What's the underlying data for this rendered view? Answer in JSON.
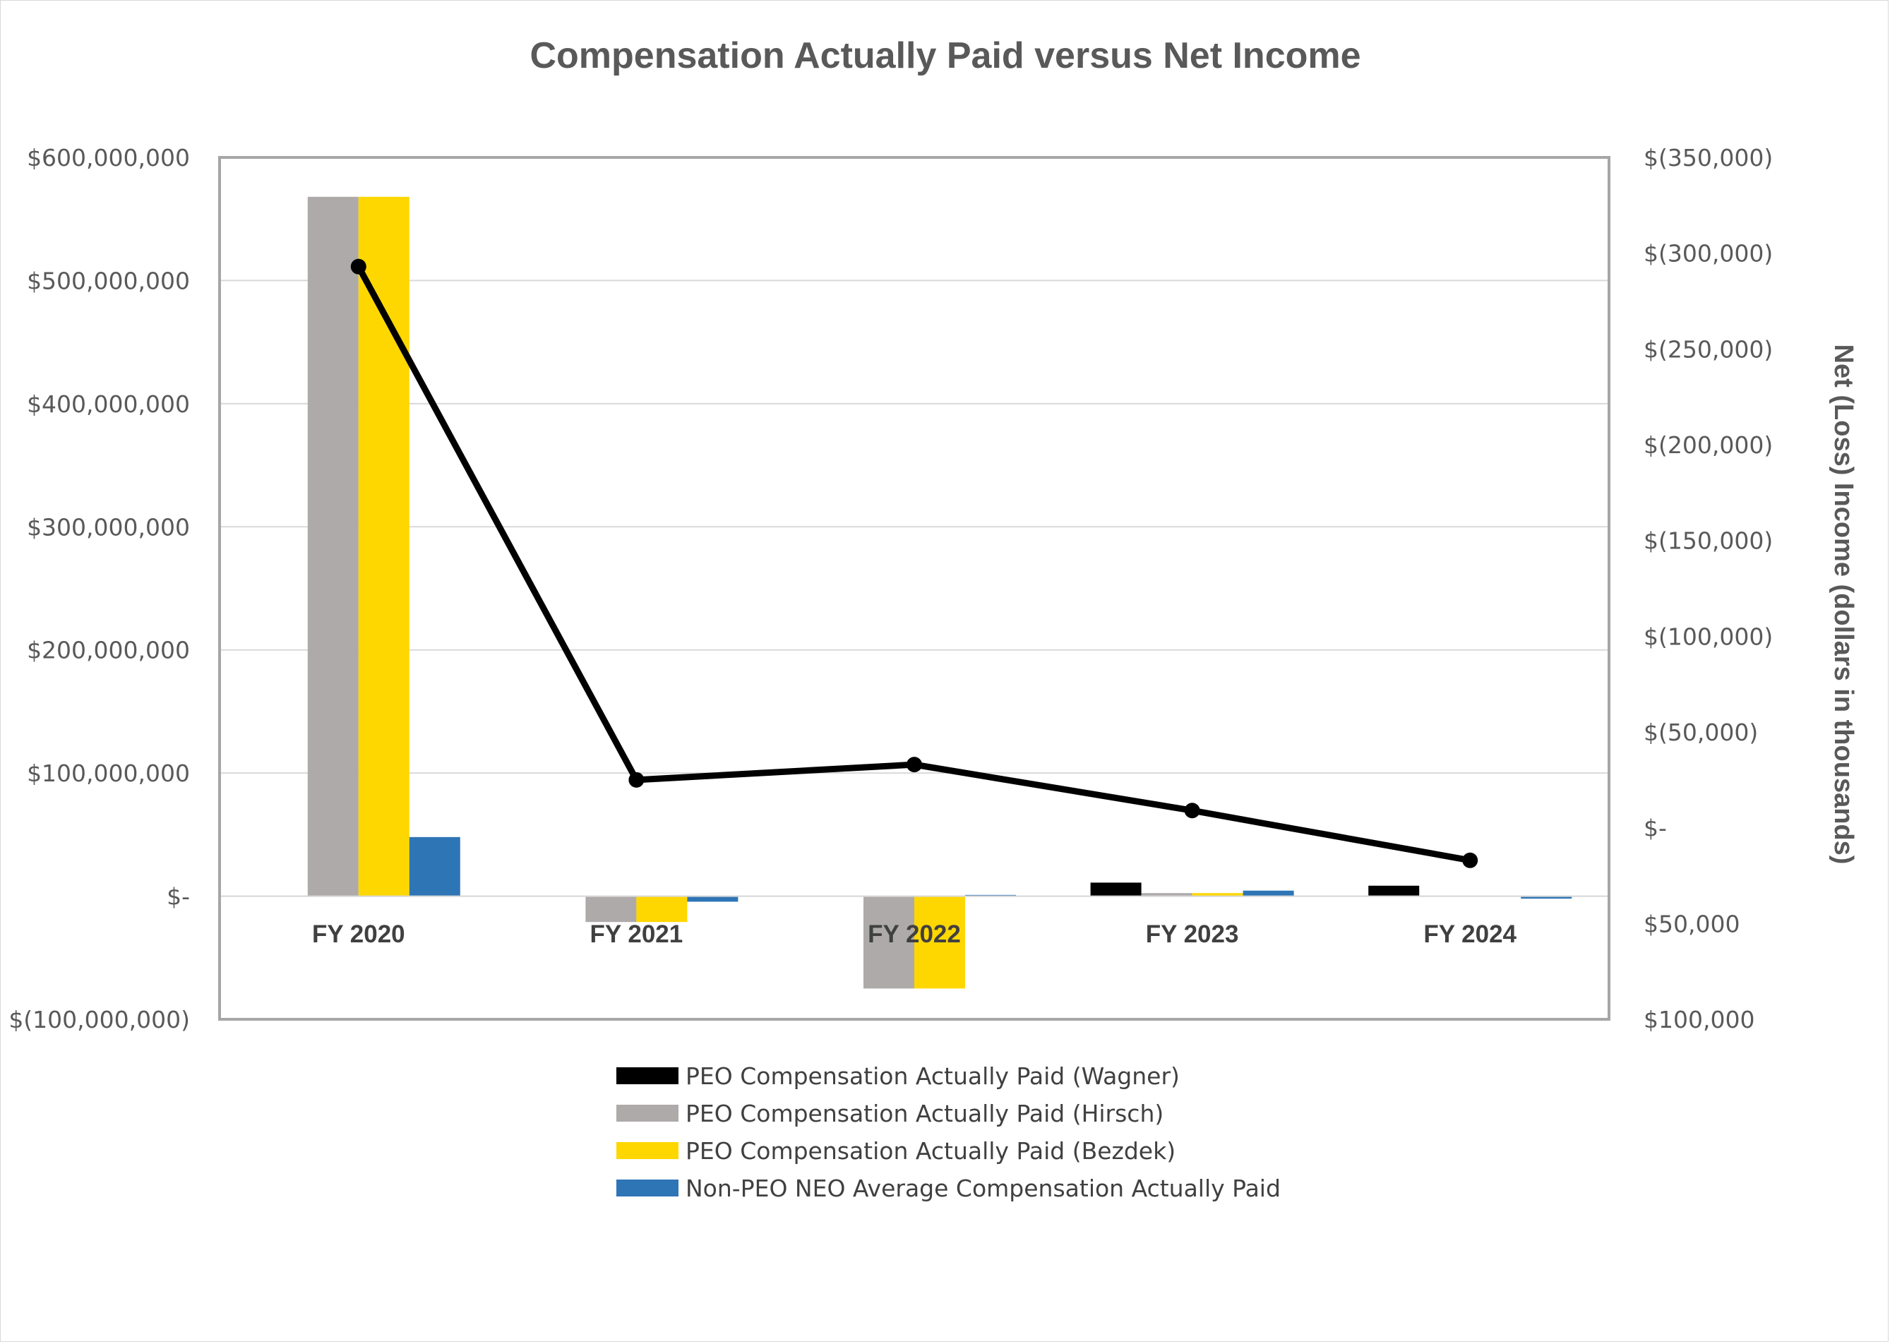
{
  "chart_data": {
    "type": "bar",
    "title": "Compensation Actually Paid versus Net Income",
    "categories": [
      "FY 2020",
      "FY 2021",
      "FY 2022",
      "FY 2023",
      "FY 2024"
    ],
    "y_left": {
      "ylim": [
        -100000000,
        600000000
      ],
      "ticks": [
        600000000,
        500000000,
        400000000,
        300000000,
        200000000,
        100000000,
        0,
        -100000000
      ],
      "tick_labels": [
        "$600,000,000",
        "$500,000,000",
        "$400,000,000",
        "$300,000,000",
        "$200,000,000",
        "$100,000,000",
        "$-",
        "$(100,000,000)"
      ]
    },
    "y_right": {
      "label": "Net (Loss) Income (dollars in thousands)",
      "ylim": [
        100000,
        -350000
      ],
      "ticks": [
        -350000,
        -300000,
        -250000,
        -200000,
        -150000,
        -100000,
        -50000,
        0,
        50000,
        100000
      ],
      "tick_labels": [
        "$(350,000)",
        "$(300,000)",
        "$(250,000)",
        "$(200,000)",
        "$(150,000)",
        "$(100,000)",
        "$(50,000)",
        "$-",
        "$50,000",
        "$100,000"
      ]
    },
    "series": [
      {
        "name": "PEO Compensation Actually Paid (Wagner)",
        "kind": "bar",
        "color": "#000000",
        "values": [
          null,
          null,
          null,
          11000000,
          8500000
        ]
      },
      {
        "name": "PEO Compensation Actually Paid (Hirsch)",
        "kind": "bar",
        "color": "#aeaaaa",
        "values": [
          568000000,
          -21000000,
          -75000000,
          2500000,
          null
        ]
      },
      {
        "name": "PEO Compensation Actually Paid (Bezdek)",
        "kind": "bar",
        "color": "#ffd700",
        "values": [
          568000000,
          -21000000,
          -75000000,
          2500000,
          null
        ]
      },
      {
        "name": "Non-PEO NEO Average Compensation Actually Paid",
        "kind": "bar",
        "color": "#2e75b6",
        "values": [
          48000000,
          -4500000,
          1000000,
          4500000,
          -2000000
        ]
      },
      {
        "name": "",
        "kind": "line",
        "axis": "right",
        "color": "#000000",
        "values": [
          -293000,
          -25000,
          -33000,
          -9000,
          17000
        ]
      }
    ],
    "gridlines": true,
    "legend_position": "bottom"
  }
}
